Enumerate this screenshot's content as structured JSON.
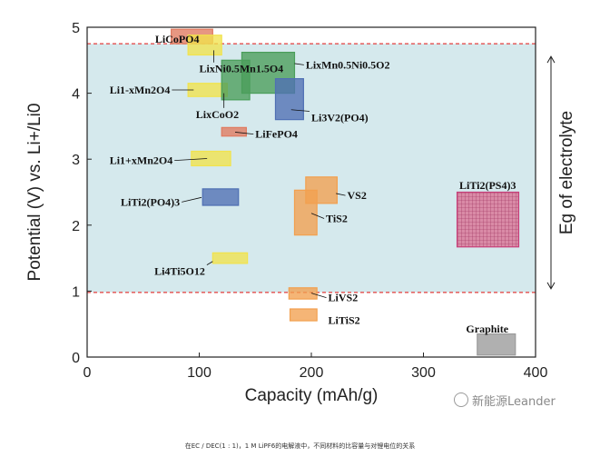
{
  "chart_data": {
    "type": "range-box",
    "xlabel": "Capacity (mAh/g)",
    "ylabel": "Potential (V) vs. Li+/Li0",
    "xlim": [
      0,
      400
    ],
    "ylim": [
      0,
      5
    ],
    "xticks": [
      0,
      100,
      200,
      300,
      400
    ],
    "yticks": [
      0,
      1,
      2,
      3,
      4,
      5
    ],
    "electrolyte_window": {
      "lower": 0.98,
      "upper": 4.75,
      "label": "Eg of electrolyte",
      "fill_color": "#d5e9ed",
      "line_color": "#e33d3d"
    },
    "materials": [
      {
        "label": "LiCoPO4",
        "x": [
          75,
          112
        ],
        "y": [
          4.75,
          4.97
        ],
        "color": "#e07a5f",
        "label_at": [
          100,
          4.82
        ],
        "label_anchor": "end",
        "leader_to": [
          90,
          4.82
        ]
      },
      {
        "label": "LixNi0.5Mn1.5O4",
        "x": [
          90,
          120
        ],
        "y": [
          4.58,
          4.88
        ],
        "color": "#f1e34d",
        "label_at": [
          100,
          4.37
        ],
        "label_anchor": "start",
        "leader_to": [
          113,
          4.65
        ]
      },
      {
        "label": "LixMn0.5Ni0.5O2",
        "x": [
          138,
          185
        ],
        "y": [
          4.0,
          4.62
        ],
        "color": "#4a9e5a",
        "label_at": [
          195,
          4.43
        ],
        "label_anchor": "start",
        "leader_to": [
          185,
          4.45
        ]
      },
      {
        "label": "Li1-xMn2O4",
        "x": [
          90,
          125
        ],
        "y": [
          3.95,
          4.15
        ],
        "color": "#f1e34d",
        "label_at": [
          20,
          4.05
        ],
        "label_anchor": "start",
        "leader_to": [
          95,
          4.05
        ]
      },
      {
        "label": "LixCoO2",
        "x": [
          120,
          145
        ],
        "y": [
          3.9,
          4.5
        ],
        "color": "#4a9e5a",
        "label_at": [
          97,
          3.68
        ],
        "label_anchor": "start",
        "leader_to": [
          122,
          4.0
        ]
      },
      {
        "label": "Li3V2(PO4)",
        "x": [
          168,
          193
        ],
        "y": [
          3.6,
          4.22
        ],
        "color": "#4f6fb3",
        "label_at": [
          200,
          3.63
        ],
        "label_anchor": "start",
        "leader_to": [
          182,
          3.75
        ]
      },
      {
        "label": "LiFePO4",
        "x": [
          120,
          142
        ],
        "y": [
          3.35,
          3.48
        ],
        "color": "#e07a5f",
        "label_at": [
          150,
          3.38
        ],
        "label_anchor": "start",
        "leader_to": [
          132,
          3.41
        ]
      },
      {
        "label": "Li1+xMn2O4",
        "x": [
          93,
          128
        ],
        "y": [
          2.9,
          3.12
        ],
        "color": "#f1e34d",
        "label_at": [
          20,
          2.98
        ],
        "label_anchor": "start",
        "leader_to": [
          107,
          3.01
        ]
      },
      {
        "label": "LiTi2(PO4)3",
        "x": [
          103,
          135
        ],
        "y": [
          2.3,
          2.55
        ],
        "color": "#4f6fb3",
        "label_at": [
          30,
          2.35
        ],
        "label_anchor": "start",
        "leader_to": [
          102,
          2.42
        ]
      },
      {
        "label": "VS2",
        "x": [
          195,
          223
        ],
        "y": [
          2.33,
          2.73
        ],
        "color": "#f2a04f",
        "label_at": [
          232,
          2.45
        ],
        "label_anchor": "start",
        "leader_to": [
          222,
          2.48
        ]
      },
      {
        "label": "TiS2",
        "x": [
          185,
          205
        ],
        "y": [
          1.85,
          2.53
        ],
        "color": "#f2a04f",
        "label_at": [
          213,
          2.1
        ],
        "label_anchor": "start",
        "leader_to": [
          200,
          2.18
        ]
      },
      {
        "label": "LiTi2(PS4)3",
        "x": [
          330,
          385
        ],
        "y": [
          1.67,
          2.5
        ],
        "color": "#c7407a",
        "pattern": "grid",
        "label_at": [
          332,
          2.6
        ],
        "label_anchor": "start"
      },
      {
        "label": "Li4Ti5O12",
        "x": [
          112,
          143
        ],
        "y": [
          1.42,
          1.58
        ],
        "color": "#f1e34d",
        "label_at": [
          60,
          1.3
        ],
        "label_anchor": "start",
        "leader_to": [
          112,
          1.45
        ]
      },
      {
        "label": "LiVS2",
        "x": [
          180,
          205
        ],
        "y": [
          0.88,
          1.05
        ],
        "color": "#f2a04f",
        "label_at": [
          215,
          0.9
        ],
        "label_anchor": "start",
        "leader_to": [
          200,
          0.97
        ]
      },
      {
        "label": "LiTiS2",
        "x": [
          181,
          205
        ],
        "y": [
          0.55,
          0.73
        ],
        "color": "#f2a04f",
        "label_at": [
          215,
          0.56
        ],
        "label_anchor": "start"
      },
      {
        "label": "Graphite",
        "x": [
          348,
          382
        ],
        "y": [
          0.03,
          0.35
        ],
        "color": "#9a9a9a",
        "label_at": [
          338,
          0.43
        ],
        "label_anchor": "start"
      }
    ]
  },
  "watermark": "新能源Leander",
  "caption": "在EC / DEC(1 : 1)，1 M LiPF6的电解液中，不同材料的比容量与对锂电位的关系"
}
